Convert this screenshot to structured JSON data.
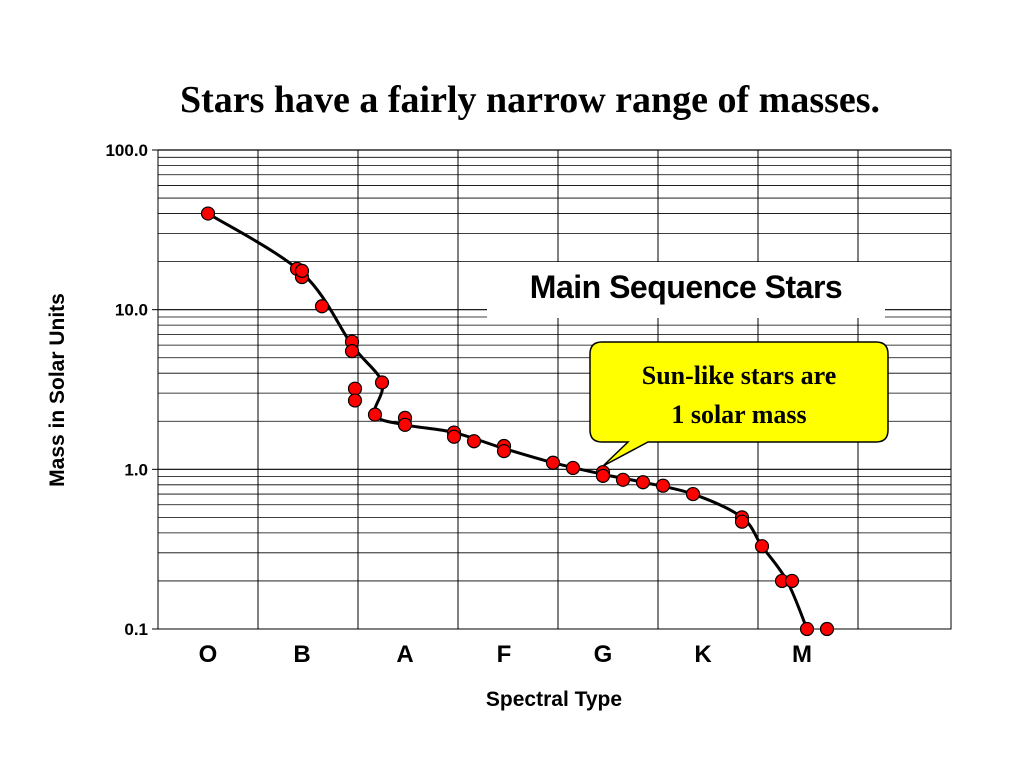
{
  "slide_title": "Stars have a fairly narrow range of masses.",
  "colors": {
    "marker_fill": "#ff0000",
    "marker_stroke": "#000000",
    "curve": "#000000",
    "grid": "#000000",
    "callout_fill": "#ffff00",
    "callout_stroke": "#000000"
  },
  "chart_data": {
    "type": "scatter",
    "title": "",
    "xlabel": "Spectral Type",
    "ylabel": "Mass in Solar Units",
    "yscale": "log",
    "ylim": [
      0.1,
      100
    ],
    "yticks": [
      "0.1",
      "1.0",
      "10.0",
      "100.0"
    ],
    "grid": true,
    "categories": [
      "O",
      "B",
      "A",
      "F",
      "G",
      "K",
      "M"
    ],
    "series": [
      {
        "values": [
          {
            "type": "O",
            "offset": 0.0,
            "mass": 40
          },
          {
            "type": "B",
            "offset": -0.05,
            "mass": 18
          },
          {
            "type": "B",
            "offset": 0.0,
            "mass": 16
          },
          {
            "type": "B",
            "offset": 0.0,
            "mass": 17.5
          },
          {
            "type": "B",
            "offset": 0.2,
            "mass": 10.5
          },
          {
            "type": "B",
            "offset": 0.5,
            "mass": 6.3
          },
          {
            "type": "B",
            "offset": 0.5,
            "mass": 5.5
          },
          {
            "type": "B",
            "offset": 0.8,
            "mass": 3.5
          },
          {
            "type": "A",
            "offset": -0.5,
            "mass": 3.2
          },
          {
            "type": "A",
            "offset": -0.5,
            "mass": 2.7
          },
          {
            "type": "A",
            "offset": -0.3,
            "mass": 2.2
          },
          {
            "type": "A",
            "offset": 0.0,
            "mass": 2.1
          },
          {
            "type": "A",
            "offset": 0.0,
            "mass": 1.9
          },
          {
            "type": "F",
            "offset": -0.5,
            "mass": 1.7
          },
          {
            "type": "F",
            "offset": -0.5,
            "mass": 1.6
          },
          {
            "type": "F",
            "offset": -0.3,
            "mass": 1.5
          },
          {
            "type": "F",
            "offset": 0.0,
            "mass": 1.4
          },
          {
            "type": "F",
            "offset": 0.0,
            "mass": 1.3
          },
          {
            "type": "G",
            "offset": -0.5,
            "mass": 1.1
          },
          {
            "type": "G",
            "offset": -0.3,
            "mass": 1.02
          },
          {
            "type": "G",
            "offset": 0.0,
            "mass": 0.96
          },
          {
            "type": "G",
            "offset": 0.0,
            "mass": 0.91
          },
          {
            "type": "K",
            "offset": -0.8,
            "mass": 0.86
          },
          {
            "type": "K",
            "offset": -0.6,
            "mass": 0.83
          },
          {
            "type": "K",
            "offset": -0.4,
            "mass": 0.79
          },
          {
            "type": "K",
            "offset": -0.1,
            "mass": 0.7
          },
          {
            "type": "M",
            "offset": -0.6,
            "mass": 0.5
          },
          {
            "type": "M",
            "offset": -0.6,
            "mass": 0.47
          },
          {
            "type": "M",
            "offset": -0.4,
            "mass": 0.33
          },
          {
            "type": "M",
            "offset": -0.2,
            "mass": 0.2
          },
          {
            "type": "M",
            "offset": -0.1,
            "mass": 0.2
          },
          {
            "type": "M",
            "offset": 0.05,
            "mass": 0.1
          },
          {
            "type": "M",
            "offset": 0.25,
            "mass": 0.1
          }
        ]
      }
    ],
    "curve": [
      {
        "type": "O",
        "offset": 0.0,
        "mass": 40
      },
      {
        "type": "B",
        "offset": 0.0,
        "mass": 17
      },
      {
        "type": "B",
        "offset": 0.5,
        "mass": 6
      },
      {
        "type": "B",
        "offset": 0.8,
        "mass": 3.5
      },
      {
        "type": "A",
        "offset": -0.3,
        "mass": 2.2
      },
      {
        "type": "A",
        "offset": 0.0,
        "mass": 1.9
      },
      {
        "type": "F",
        "offset": -0.5,
        "mass": 1.7
      },
      {
        "type": "F",
        "offset": 0.0,
        "mass": 1.35
      },
      {
        "type": "G",
        "offset": -0.5,
        "mass": 1.1
      },
      {
        "type": "G",
        "offset": 0.0,
        "mass": 0.93
      },
      {
        "type": "K",
        "offset": -0.6,
        "mass": 0.83
      },
      {
        "type": "K",
        "offset": -0.1,
        "mass": 0.7
      },
      {
        "type": "M",
        "offset": -0.6,
        "mass": 0.5
      },
      {
        "type": "M",
        "offset": -0.4,
        "mass": 0.33
      },
      {
        "type": "M",
        "offset": -0.15,
        "mass": 0.2
      },
      {
        "type": "M",
        "offset": 0.05,
        "mass": 0.1
      }
    ],
    "annotations": {
      "box": "Main Sequence Stars",
      "callout_line1": "Sun-like stars are",
      "callout_line2": "1 solar mass"
    }
  }
}
